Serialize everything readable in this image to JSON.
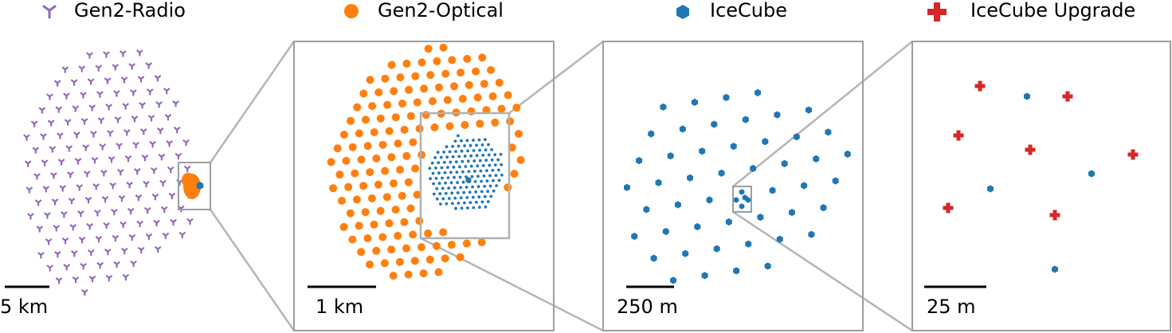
{
  "legend": [
    {
      "label": "Gen2-Radio",
      "color": "#9467bd",
      "marker": "tri-y-icon"
    },
    {
      "label": "Gen2-Optical",
      "color": "#ff7f0e",
      "marker": "circle-icon"
    },
    {
      "label": "IceCube",
      "color": "#1f77b4",
      "marker": "hexagon-icon"
    },
    {
      "label": "IceCube Upgrade",
      "color": "#d62728",
      "marker": "plus-icon"
    }
  ],
  "scale_bars": [
    {
      "panel": "radio",
      "label": "5 km"
    },
    {
      "panel": "optical",
      "label": "1 km"
    },
    {
      "panel": "icecube",
      "label": "250 m"
    },
    {
      "panel": "upgrade",
      "label": "25 m"
    }
  ],
  "colors": {
    "radio": "#9467bd",
    "optical": "#ff7f0e",
    "icecube": "#1f77b4",
    "upgrade": "#d62728",
    "frame": "#9e9e9e",
    "zoom": "#b0b0b0"
  }
}
